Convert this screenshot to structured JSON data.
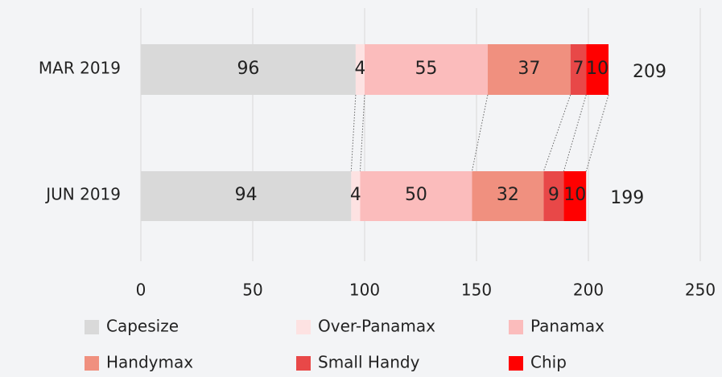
{
  "chart_data": {
    "type": "stacked_barh",
    "categories": [
      "MAR 2019",
      "JUN 2019"
    ],
    "series": [
      {
        "name": "Capesize",
        "color": "#d9d9d9",
        "values": [
          96,
          94
        ]
      },
      {
        "name": "Over-Panamax",
        "color": "#fde2e2",
        "values": [
          4,
          4
        ]
      },
      {
        "name": "Panamax",
        "color": "#fbbcbc",
        "values": [
          55,
          50
        ]
      },
      {
        "name": "Handymax",
        "color": "#f0907f",
        "values": [
          37,
          32
        ]
      },
      {
        "name": "Small Handy",
        "color": "#e84848",
        "values": [
          7,
          9
        ]
      },
      {
        "name": "Chip",
        "color": "#ff0000",
        "values": [
          10,
          10
        ]
      }
    ],
    "totals": [
      209,
      199
    ],
    "xlim": [
      0,
      250
    ],
    "xticks": [
      0,
      50,
      100,
      150,
      200,
      250
    ],
    "grid": true
  }
}
